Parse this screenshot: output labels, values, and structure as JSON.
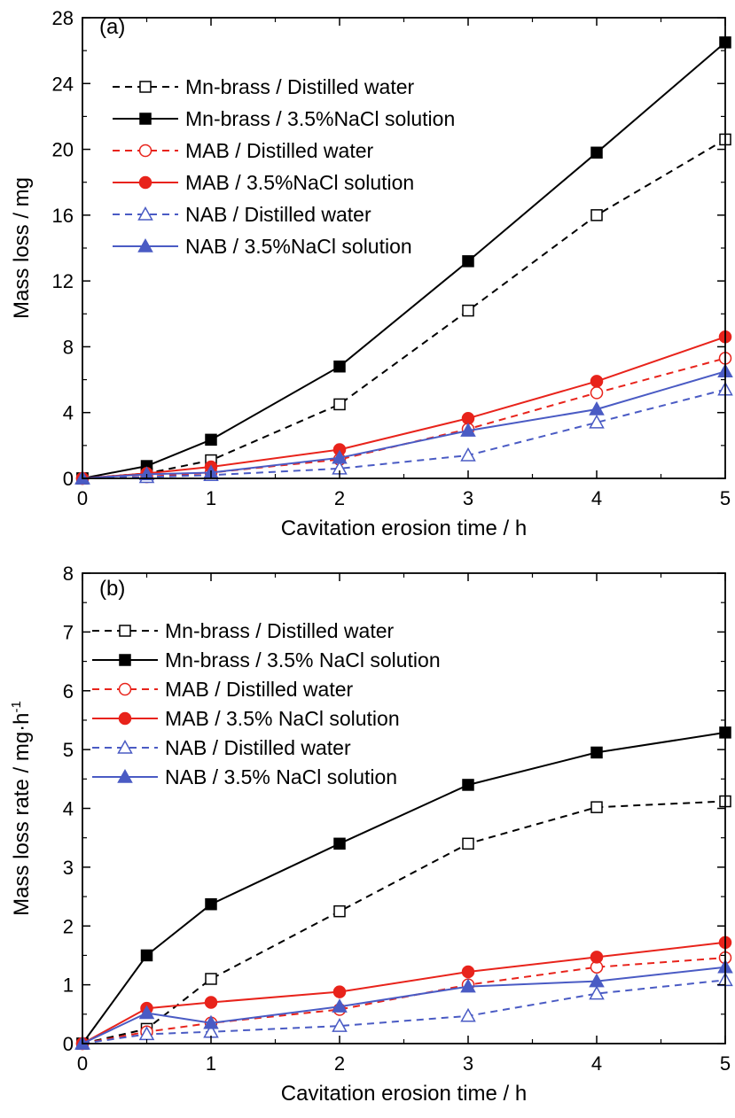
{
  "chart_data": [
    {
      "type": "line",
      "panel_label": "(a)",
      "xlabel": "Cavitation erosion time / h",
      "ylabel": "Mass loss / mg",
      "xlim": [
        0,
        5
      ],
      "ylim": [
        0,
        28
      ],
      "xticks": [
        0,
        1,
        2,
        3,
        4,
        5
      ],
      "yticks": [
        0,
        4,
        8,
        12,
        16,
        20,
        24,
        28
      ],
      "grid": false,
      "legend_position": "top-left",
      "series": [
        {
          "name": "Mn-brass / Distilled water",
          "color": "#000000",
          "dash": true,
          "marker": "square",
          "filled": false,
          "x": [
            0,
            0.5,
            1,
            2,
            3,
            4,
            5
          ],
          "y": [
            0,
            0.3,
            1.1,
            4.5,
            10.2,
            16.0,
            20.6
          ]
        },
        {
          "name": "Mn-brass / 3.5%NaCl solution",
          "color": "#000000",
          "dash": false,
          "marker": "square",
          "filled": true,
          "x": [
            0,
            0.5,
            1,
            2,
            3,
            4,
            5
          ],
          "y": [
            0,
            0.75,
            2.35,
            6.8,
            13.2,
            19.8,
            26.5
          ]
        },
        {
          "name": "MAB / Distilled water",
          "color": "#e8231b",
          "dash": true,
          "marker": "circle",
          "filled": false,
          "x": [
            0,
            0.5,
            1,
            2,
            3,
            4,
            5
          ],
          "y": [
            0,
            0.1,
            0.35,
            1.15,
            3.0,
            5.2,
            7.3
          ]
        },
        {
          "name": "MAB / 3.5%NaCl solution",
          "color": "#e8231b",
          "dash": false,
          "marker": "circle",
          "filled": true,
          "x": [
            0,
            0.5,
            1,
            2,
            3,
            4,
            5
          ],
          "y": [
            0,
            0.3,
            0.7,
            1.75,
            3.65,
            5.9,
            8.6
          ]
        },
        {
          "name": "NAB / Distilled water",
          "color": "#4a5bc4",
          "dash": true,
          "marker": "triangle",
          "filled": false,
          "x": [
            0,
            0.5,
            1,
            2,
            3,
            4,
            5
          ],
          "y": [
            0,
            0.08,
            0.2,
            0.6,
            1.4,
            3.4,
            5.4
          ]
        },
        {
          "name": "NAB / 3.5%NaCl solution",
          "color": "#4a5bc4",
          "dash": false,
          "marker": "triangle",
          "filled": true,
          "x": [
            0,
            0.5,
            1,
            2,
            3,
            4,
            5
          ],
          "y": [
            0,
            0.25,
            0.35,
            1.25,
            2.9,
            4.2,
            6.5
          ]
        }
      ]
    },
    {
      "type": "line",
      "panel_label": "(b)",
      "xlabel": "Cavitation erosion time / h",
      "ylabel": "Mass loss rate / mg·h",
      "ylabel_superscript": "-1",
      "xlim": [
        0,
        5
      ],
      "ylim": [
        0,
        8
      ],
      "xticks": [
        0,
        1,
        2,
        3,
        4,
        5
      ],
      "yticks": [
        0,
        1,
        2,
        3,
        4,
        5,
        6,
        7,
        8
      ],
      "grid": false,
      "legend_position": "top-left",
      "series": [
        {
          "name": "Mn-brass / Distilled water",
          "color": "#000000",
          "dash": true,
          "marker": "square",
          "filled": false,
          "x": [
            0,
            0.5,
            1,
            2,
            3,
            4,
            5
          ],
          "y": [
            0,
            0.25,
            1.1,
            2.25,
            3.4,
            4.02,
            4.12
          ]
        },
        {
          "name": "Mn-brass / 3.5% NaCl solution",
          "color": "#000000",
          "dash": false,
          "marker": "square",
          "filled": true,
          "x": [
            0,
            0.5,
            1,
            2,
            3,
            4,
            5
          ],
          "y": [
            0,
            1.5,
            2.37,
            3.4,
            4.4,
            4.95,
            5.29
          ]
        },
        {
          "name": "MAB / Distilled water",
          "color": "#e8231b",
          "dash": true,
          "marker": "circle",
          "filled": false,
          "x": [
            0,
            0.5,
            1,
            2,
            3,
            4,
            5
          ],
          "y": [
            0,
            0.2,
            0.35,
            0.58,
            1.0,
            1.3,
            1.46
          ]
        },
        {
          "name": "MAB / 3.5% NaCl solution",
          "color": "#e8231b",
          "dash": false,
          "marker": "circle",
          "filled": true,
          "x": [
            0,
            0.5,
            1,
            2,
            3,
            4,
            5
          ],
          "y": [
            0,
            0.6,
            0.7,
            0.88,
            1.22,
            1.47,
            1.72
          ]
        },
        {
          "name": "NAB / Distilled water",
          "color": "#4a5bc4",
          "dash": true,
          "marker": "triangle",
          "filled": false,
          "x": [
            0,
            0.5,
            1,
            2,
            3,
            4,
            5
          ],
          "y": [
            0,
            0.16,
            0.2,
            0.3,
            0.47,
            0.85,
            1.08
          ]
        },
        {
          "name": "NAB / 3.5% NaCl solution",
          "color": "#4a5bc4",
          "dash": false,
          "marker": "triangle",
          "filled": true,
          "x": [
            0,
            0.5,
            1,
            2,
            3,
            4,
            5
          ],
          "y": [
            0,
            0.52,
            0.35,
            0.63,
            0.97,
            1.06,
            1.3
          ]
        }
      ]
    }
  ]
}
